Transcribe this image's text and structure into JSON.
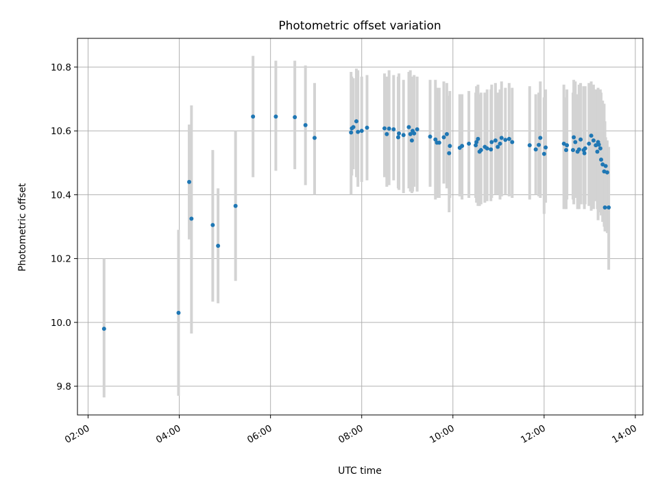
{
  "chart_data": {
    "type": "scatter",
    "title": "Photometric offset variation",
    "xlabel": "UTC time",
    "ylabel": "Photometric offset",
    "x_ticks": [
      "02:00",
      "04:00",
      "06:00",
      "08:00",
      "10:00",
      "12:00",
      "14:00"
    ],
    "y_ticks": [
      "9.8",
      "10.0",
      "10.2",
      "10.4",
      "10.6",
      "10.8"
    ],
    "xlim": [
      "01:46",
      "14:10"
    ],
    "ylim": [
      9.71,
      10.89
    ],
    "grid": true,
    "error_bar_color": "#d3d3d3",
    "point_color": "#1f77b4",
    "series": [
      {
        "x": [
          "02:21",
          "03:59",
          "04:13",
          "04:16",
          "04:44",
          "04:51",
          "05:14",
          "05:37",
          "06:07",
          "06:32",
          "06:46",
          "06:58",
          "07:46",
          "07:47",
          "07:49",
          "07:53",
          "07:55",
          "08:00",
          "08:07",
          "08:30",
          "08:33",
          "08:36",
          "08:42",
          "08:48",
          "08:49",
          "08:55",
          "09:02",
          "09:04",
          "09:06",
          "09:07",
          "09:09",
          "09:13",
          "09:30",
          "09:37",
          "09:39",
          "09:42",
          "09:48",
          "09:52",
          "09:55",
          "09:56",
          "10:09",
          "10:12",
          "10:21",
          "10:30",
          "10:31",
          "10:33",
          "10:35",
          "10:37",
          "10:42",
          "10:45",
          "10:50",
          "10:51",
          "10:56",
          "10:59",
          "11:02",
          "11:04",
          "11:09",
          "11:14",
          "11:18",
          "11:41",
          "11:49",
          "11:53",
          "11:55",
          "12:00",
          "12:02",
          "12:26",
          "12:29",
          "12:30",
          "12:38",
          "12:39",
          "12:41",
          "12:44",
          "12:46",
          "12:48",
          "12:52",
          "12:53",
          "12:54",
          "12:59",
          "13:02",
          "13:05",
          "13:08",
          "13:10",
          "13:11",
          "13:12",
          "13:14",
          "13:15",
          "13:17",
          "13:19",
          "13:20",
          "13:21",
          "13:23",
          "13:25"
        ],
        "y": [
          9.98,
          10.03,
          10.44,
          10.325,
          10.305,
          10.24,
          10.365,
          10.645,
          10.645,
          10.643,
          10.618,
          10.578,
          10.595,
          10.608,
          10.612,
          10.63,
          10.597,
          10.6,
          10.61,
          10.608,
          10.59,
          10.607,
          10.605,
          10.58,
          10.592,
          10.587,
          10.612,
          10.59,
          10.57,
          10.6,
          10.592,
          10.605,
          10.582,
          10.573,
          10.563,
          10.563,
          10.58,
          10.59,
          10.53,
          10.553,
          10.547,
          10.553,
          10.56,
          10.555,
          10.565,
          10.575,
          10.535,
          10.54,
          10.55,
          10.545,
          10.542,
          10.565,
          10.57,
          10.55,
          10.56,
          10.578,
          10.572,
          10.575,
          10.565,
          10.555,
          10.542,
          10.556,
          10.578,
          10.528,
          10.548,
          10.56,
          10.54,
          10.555,
          10.54,
          10.58,
          10.565,
          10.535,
          10.542,
          10.573,
          10.54,
          10.53,
          10.545,
          10.56,
          10.585,
          10.57,
          10.555,
          10.535,
          10.565,
          10.557,
          10.545,
          10.51,
          10.495,
          10.473,
          10.36,
          10.49,
          10.47,
          10.36
        ],
        "err_low": [
          9.765,
          9.77,
          10.26,
          9.965,
          10.065,
          10.06,
          10.13,
          10.455,
          10.475,
          10.48,
          10.43,
          10.4,
          10.4,
          10.46,
          10.48,
          10.455,
          10.425,
          10.44,
          10.445,
          10.455,
          10.425,
          10.43,
          10.445,
          10.42,
          10.415,
          10.405,
          10.42,
          10.41,
          10.405,
          10.41,
          10.425,
          10.41,
          10.425,
          10.385,
          10.39,
          10.39,
          10.435,
          10.42,
          10.345,
          10.39,
          10.395,
          10.385,
          10.39,
          10.39,
          10.375,
          10.365,
          10.365,
          10.37,
          10.375,
          10.38,
          10.38,
          10.39,
          10.4,
          10.4,
          10.385,
          10.395,
          10.4,
          10.395,
          10.39,
          10.385,
          10.4,
          10.395,
          10.39,
          10.34,
          10.375,
          10.355,
          10.355,
          10.385,
          10.385,
          10.37,
          10.39,
          10.355,
          10.355,
          10.37,
          10.37,
          10.355,
          10.37,
          10.365,
          10.35,
          10.355,
          10.38,
          10.355,
          10.32,
          10.35,
          10.345,
          10.335,
          10.315,
          10.3,
          10.285,
          10.29,
          10.28,
          10.165
        ],
        "err_high": [
          10.2,
          10.29,
          10.62,
          10.68,
          10.54,
          10.42,
          10.6,
          10.835,
          10.82,
          10.82,
          10.805,
          10.75,
          10.785,
          10.77,
          10.765,
          10.795,
          10.79,
          10.77,
          10.775,
          10.78,
          10.77,
          10.79,
          10.775,
          10.77,
          10.78,
          10.76,
          10.785,
          10.79,
          10.765,
          10.77,
          10.775,
          10.77,
          10.76,
          10.76,
          10.735,
          10.735,
          10.755,
          10.75,
          10.71,
          10.725,
          10.715,
          10.715,
          10.725,
          10.72,
          10.74,
          10.745,
          10.715,
          10.72,
          10.72,
          10.73,
          10.73,
          10.745,
          10.75,
          10.72,
          10.73,
          10.755,
          10.735,
          10.75,
          10.735,
          10.74,
          10.715,
          10.72,
          10.755,
          10.705,
          10.73,
          10.745,
          10.705,
          10.73,
          10.72,
          10.76,
          10.755,
          10.715,
          10.745,
          10.75,
          10.74,
          10.705,
          10.74,
          10.75,
          10.755,
          10.745,
          10.73,
          10.72,
          10.735,
          10.725,
          10.73,
          10.72,
          10.695,
          10.685,
          10.63,
          10.58,
          10.57,
          10.55
        ]
      }
    ]
  }
}
